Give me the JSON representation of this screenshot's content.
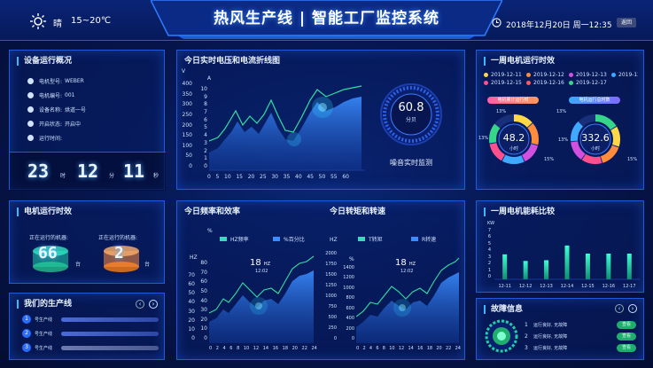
{
  "header": {
    "title": "热风生产线 | 智能工厂监控系统",
    "weather_text": "晴",
    "temp": "15~20℃",
    "datetime": "2018年12月20日  周一12:35",
    "back_label": "返回"
  },
  "overview": {
    "title": "设备运行概况",
    "rows": [
      {
        "label": "电机型号:",
        "value": "WEBER"
      },
      {
        "label": "电机编号:",
        "value": "001"
      },
      {
        "label": "设备名称:",
        "value": "烘道一号"
      },
      {
        "label": "开启状态:",
        "value": "开启中"
      },
      {
        "label": "运行时间:",
        "value": ""
      }
    ],
    "clock": {
      "h": "23",
      "h_unit": "时",
      "m": "12",
      "m_unit": "分",
      "s": "11",
      "s_unit": "秒"
    }
  },
  "voltage": {
    "title": "今日实时电压和电流折线图",
    "ylabel_v": "V",
    "ylabel_a": "A",
    "yticks_v": [
      "400",
      "350",
      "300",
      "250",
      "200",
      "150",
      "100",
      "50",
      "0"
    ],
    "yticks_a": [
      "10",
      "9",
      "8",
      "7",
      "6",
      "5",
      "4",
      "3",
      "2",
      "1",
      "0"
    ],
    "xticks": [
      "0",
      "5",
      "10",
      "15",
      "20",
      "25",
      "30",
      "35",
      "40",
      "45",
      "50",
      "55",
      "60"
    ],
    "noise_value": "60.8",
    "noise_unit": "分贝",
    "noise_label": "噪音实时监测"
  },
  "weekly": {
    "title": "一周电机运行时效",
    "legend": [
      {
        "label": "2019-12-11",
        "color": "#ffd84a"
      },
      {
        "label": "2019-12-12",
        "color": "#ff8c3a"
      },
      {
        "label": "2019-12-13",
        "color": "#d24fe0"
      },
      {
        "label": "2019-12-14",
        "color": "#3fa8ff"
      },
      {
        "label": "2019-12-15",
        "color": "#ff4f8c"
      },
      {
        "label": "2019-12-16",
        "color": "#ff5a5a"
      },
      {
        "label": "2019-12-17",
        "color": "#35d68a"
      }
    ],
    "left_label": "电机累计运行时",
    "right_label": "电机运行总时数",
    "left_value": "48.2",
    "left_unit": "小时",
    "right_value": "332.6",
    "right_unit": "小时",
    "pct": "13%",
    "pct2": "15%"
  },
  "runtime": {
    "title": "电机运行时效",
    "left_label": "正在运行的机器:",
    "left_value": "66",
    "left_unit": "台",
    "right_label": "正在运行的机器:",
    "right_value": "2",
    "right_unit": "台"
  },
  "lines": {
    "title": "我们的生产线",
    "items": [
      {
        "num": "1",
        "label": "号生产线"
      },
      {
        "num": "2",
        "label": "号生产线"
      },
      {
        "num": "3",
        "label": "号生产线"
      }
    ]
  },
  "freq": {
    "title": "今日频率和效率",
    "legend1": "HZ频率",
    "legend2": "%百分比",
    "axis_pct": "%",
    "axis_hz": "HZ",
    "yticks_pct": [
      "80",
      "70",
      "60",
      "50",
      "40",
      "30",
      "20",
      "10",
      "0"
    ],
    "yticks_hz": [
      "70",
      "60",
      "50",
      "40",
      "30",
      "20",
      "10",
      "0"
    ],
    "xticks": [
      "0",
      "2",
      "4",
      "6",
      "8",
      "10",
      "12",
      "14",
      "16",
      "18",
      "20",
      "22",
      "24"
    ],
    "peak_value": "18",
    "peak_unit": "HZ",
    "peak_time": "12:02"
  },
  "torque": {
    "title": "今日转矩和转速",
    "legend1": "T转矩",
    "legend2": "R转速",
    "axis_hz": "HZ",
    "axis_pct": "%",
    "yticks_hz": [
      "2000",
      "1750",
      "1500",
      "1250",
      "1000",
      "750",
      "500",
      "250",
      "0"
    ],
    "yticks_pct": [
      "1400",
      "1200",
      "1000",
      "800",
      "600",
      "400",
      "200",
      "0"
    ],
    "xticks": [
      "0",
      "2",
      "4",
      "6",
      "8",
      "10",
      "12",
      "14",
      "16",
      "18",
      "20",
      "22",
      "24"
    ],
    "peak_value": "18",
    "peak_unit": "HZ",
    "peak_time": "12:02"
  },
  "energy": {
    "title": "一周电机能耗比较",
    "ylabel": "KW",
    "yticks": [
      "7",
      "6",
      "5",
      "4",
      "3",
      "2",
      "1",
      "0"
    ]
  },
  "faults": {
    "title": "故障信息",
    "items": [
      {
        "num": "1",
        "text": "运行良好, 无故障",
        "tag": "查看"
      },
      {
        "num": "2",
        "text": "运行良好, 无故障",
        "tag": "查看"
      },
      {
        "num": "3",
        "text": "运行良好, 无故障",
        "tag": "查看"
      }
    ]
  },
  "chart_data": {
    "type": "bar",
    "ylabel": "KW",
    "categories": [
      "12-11",
      "12-12",
      "12-13",
      "12-14",
      "12-15",
      "12-16",
      "12-17"
    ],
    "values": [
      3.4,
      2.5,
      2.6,
      4.6,
      3.5,
      3.5,
      3.5
    ],
    "ylim": [
      0,
      7
    ]
  }
}
